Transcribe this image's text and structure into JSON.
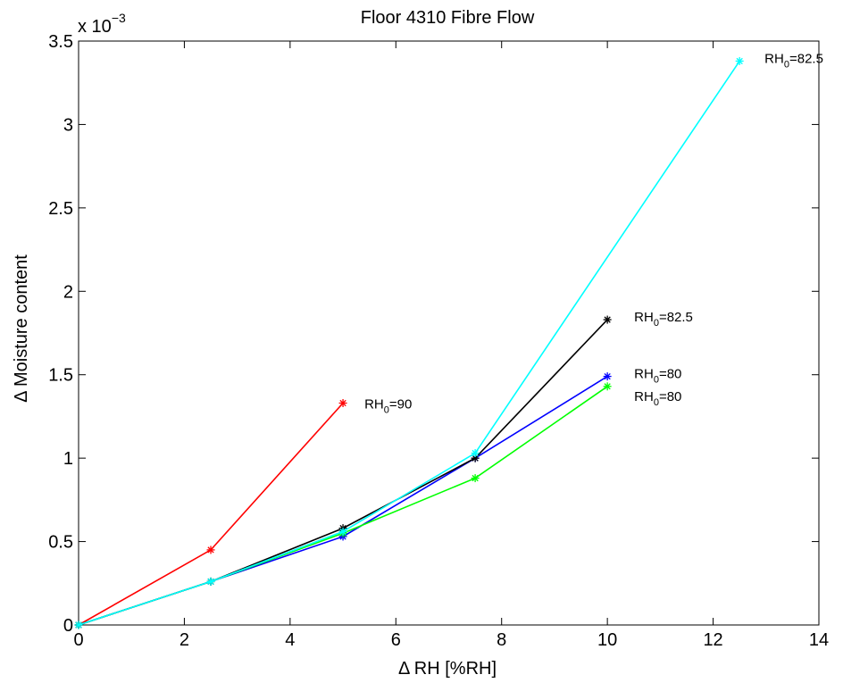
{
  "chart_data": {
    "type": "line",
    "title": "Floor 4310 Fibre Flow",
    "xlabel": "Δ RH [%RH]",
    "ylabel": "Δ Moisture content",
    "y_multiplier": {
      "base": "x 10",
      "exponent": "−3"
    },
    "xlim": [
      0,
      14
    ],
    "ylim": [
      0,
      0.0035
    ],
    "x_ticks": [
      0,
      2,
      4,
      6,
      8,
      10,
      12,
      14
    ],
    "x_tick_labels": [
      "0",
      "2",
      "4",
      "6",
      "8",
      "10",
      "12",
      "14"
    ],
    "y_ticks": [
      0,
      0.0005,
      0.001,
      0.0015,
      0.002,
      0.0025,
      0.003,
      0.0035
    ],
    "y_tick_labels": [
      "0",
      "0.5",
      "1",
      "1.5",
      "2",
      "2.5",
      "3",
      "3.5"
    ],
    "grid": false,
    "legend": "none",
    "series": [
      {
        "label_base": "RH",
        "label_sub": "0",
        "label_value": "=90",
        "color": "#ff0000",
        "x": [
          0,
          2.5,
          5
        ],
        "values": [
          0,
          0.00045,
          0.00133
        ]
      },
      {
        "label_base": "RH",
        "label_sub": "0",
        "label_value": "=80",
        "color": "#0000ff",
        "x": [
          0,
          2.5,
          5,
          7.5,
          10
        ],
        "values": [
          0,
          0.00026,
          0.00053,
          0.001,
          0.00149
        ]
      },
      {
        "label_base": "RH",
        "label_sub": "0",
        "label_value": "=80",
        "color": "#00ff00",
        "x": [
          0,
          2.5,
          5,
          7.5,
          10
        ],
        "values": [
          0,
          0.00026,
          0.00055,
          0.00088,
          0.00143
        ]
      },
      {
        "label_base": "RH",
        "label_sub": "0",
        "label_value": "=82.5",
        "color": "#000000",
        "x": [
          0,
          2.5,
          5,
          7.5,
          10
        ],
        "values": [
          0,
          0.00026,
          0.00058,
          0.001,
          0.00183
        ]
      },
      {
        "label_base": "RH",
        "label_sub": "0",
        "label_value": "=82.5",
        "color": "#00ffff",
        "x": [
          0,
          2.5,
          5,
          7.5,
          12.5
        ],
        "values": [
          0,
          0.00026,
          0.00056,
          0.00103,
          0.00338
        ]
      }
    ]
  }
}
